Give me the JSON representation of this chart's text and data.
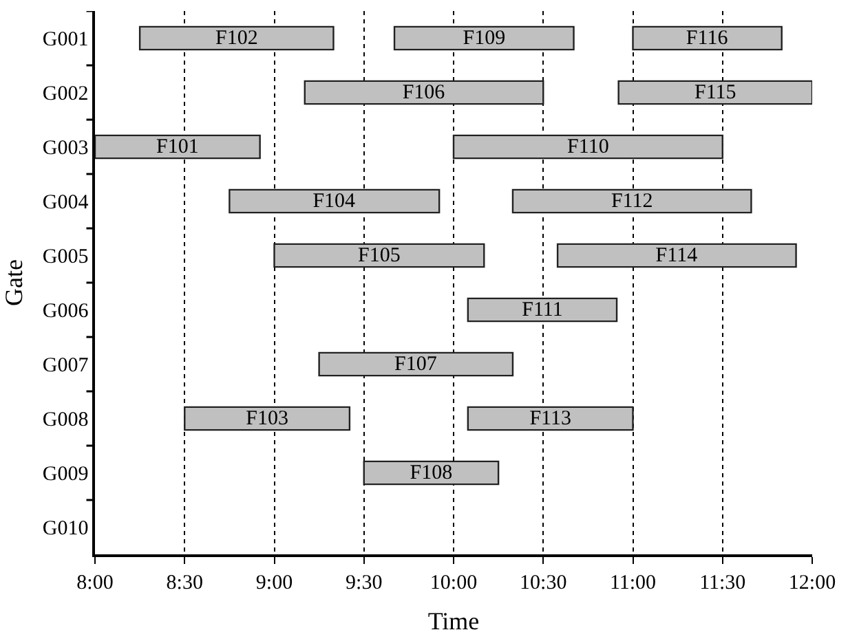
{
  "chart_data": {
    "type": "bar",
    "orientation": "horizontal",
    "xlabel": "Time",
    "ylabel": "Gate",
    "categories": [
      "G001",
      "G002",
      "G003",
      "G004",
      "G005",
      "G006",
      "G007",
      "G008",
      "G009",
      "G010"
    ],
    "series": [
      {
        "color": "#c0c0c0",
        "base": [
          8.25,
          9.17,
          8,
          8.75,
          9,
          10.08,
          9.25,
          8.5,
          9.5,
          null
        ],
        "values": [
          1.08,
          1.33,
          0.92,
          1.17,
          1.17,
          0.83,
          1.08,
          0.92,
          0.75,
          null
        ],
        "value_labels": [
          "F102",
          "F106",
          "F101",
          "F104",
          "F105",
          "F111",
          "F107",
          "F103",
          "F108",
          null
        ]
      },
      {
        "color": "#c0c0c0",
        "base": [
          9.67,
          10.92,
          10,
          10.33,
          10.58,
          null,
          null,
          10.08,
          null,
          null
        ],
        "values": [
          1,
          1.08,
          1.5,
          1.33,
          1.33,
          null,
          null,
          0.92,
          null,
          null
        ],
        "value_labels": [
          "F109",
          "F115",
          "F110",
          "F112",
          "F114",
          null,
          null,
          "F113",
          null,
          null
        ]
      },
      {
        "color": "#c0c0c0",
        "base": [
          11,
          null,
          null,
          null,
          null,
          null,
          null,
          null,
          null,
          null
        ],
        "values": [
          0.83,
          null,
          null,
          null,
          null,
          null,
          null,
          null,
          null,
          null
        ],
        "value_labels": [
          "F116",
          null,
          null,
          null,
          null,
          null,
          null,
          null,
          null,
          null
        ]
      }
    ],
    "xlim": [
      8,
      12
    ],
    "xticks": [
      {
        "value": 8,
        "label": "8:00"
      },
      {
        "value": 8.5,
        "label": "8:30"
      },
      {
        "value": 9,
        "label": "9:00"
      },
      {
        "value": 9.5,
        "label": "9:30"
      },
      {
        "value": 10,
        "label": "10:00"
      },
      {
        "value": 10.5,
        "label": "10:30"
      },
      {
        "value": 11,
        "label": "11:00"
      },
      {
        "value": 11.5,
        "label": "11:30"
      },
      {
        "value": 12,
        "label": "12:00"
      }
    ],
    "grid": "x"
  }
}
